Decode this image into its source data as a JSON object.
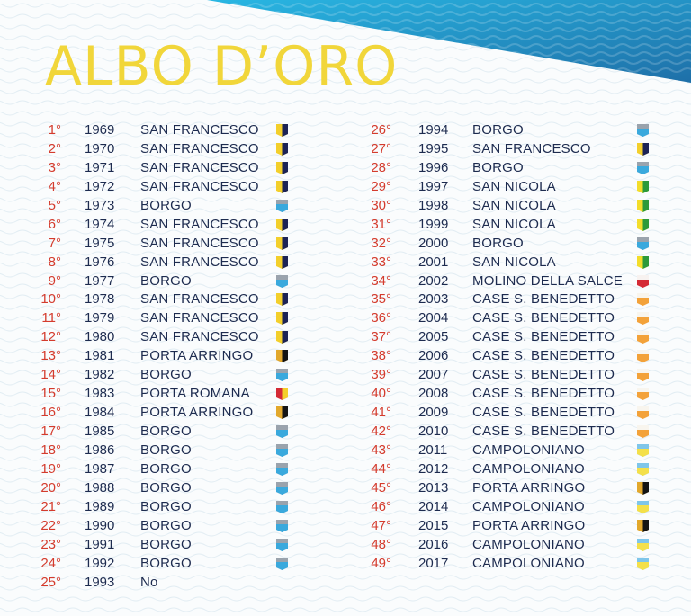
{
  "title": "ALBO D’ORO",
  "colors": {
    "title": "#f1d63a",
    "rank": "#d43b2d",
    "text": "#1d2b4f",
    "corner_top": "#29b7e3",
    "corner_bottom": "#1e6fa8"
  },
  "left_column": [
    {
      "rank": "1°",
      "year": "1969",
      "team": "SAN FRANCESCO",
      "flag": "san-francesco"
    },
    {
      "rank": "2°",
      "year": "1970",
      "team": "SAN FRANCESCO",
      "flag": "san-francesco"
    },
    {
      "rank": "3°",
      "year": "1971",
      "team": "SAN FRANCESCO",
      "flag": "san-francesco"
    },
    {
      "rank": "4°",
      "year": "1972",
      "team": "SAN FRANCESCO",
      "flag": "san-francesco"
    },
    {
      "rank": "5°",
      "year": "1973",
      "team": "BORGO",
      "flag": "borgo"
    },
    {
      "rank": "6°",
      "year": "1974",
      "team": "SAN FRANCESCO",
      "flag": "san-francesco"
    },
    {
      "rank": "7°",
      "year": "1975",
      "team": "SAN FRANCESCO",
      "flag": "san-francesco"
    },
    {
      "rank": "8°",
      "year": "1976",
      "team": "SAN FRANCESCO",
      "flag": "san-francesco"
    },
    {
      "rank": "9°",
      "year": "1977",
      "team": "BORGO",
      "flag": "borgo"
    },
    {
      "rank": "10°",
      "year": "1978",
      "team": "SAN FRANCESCO",
      "flag": "san-francesco"
    },
    {
      "rank": "11°",
      "year": "1979",
      "team": "SAN FRANCESCO",
      "flag": "san-francesco"
    },
    {
      "rank": "12°",
      "year": "1980",
      "team": "SAN FRANCESCO",
      "flag": "san-francesco"
    },
    {
      "rank": "13°",
      "year": "1981",
      "team": "PORTA ARRINGO",
      "flag": "porta-arringo"
    },
    {
      "rank": "14°",
      "year": "1982",
      "team": "BORGO",
      "flag": "borgo"
    },
    {
      "rank": "15°",
      "year": "1983",
      "team": "PORTA ROMANA",
      "flag": "porta-romana"
    },
    {
      "rank": "16°",
      "year": "1984",
      "team": "PORTA ARRINGO",
      "flag": "porta-arringo"
    },
    {
      "rank": "17°",
      "year": "1985",
      "team": "BORGO",
      "flag": "borgo"
    },
    {
      "rank": "18°",
      "year": "1986",
      "team": "BORGO",
      "flag": "borgo"
    },
    {
      "rank": "19°",
      "year": "1987",
      "team": "BORGO",
      "flag": "borgo"
    },
    {
      "rank": "20°",
      "year": "1988",
      "team": "BORGO",
      "flag": "borgo"
    },
    {
      "rank": "21°",
      "year": "1989",
      "team": "BORGO",
      "flag": "borgo"
    },
    {
      "rank": "22°",
      "year": "1990",
      "team": "BORGO",
      "flag": "borgo"
    },
    {
      "rank": "23°",
      "year": "1991",
      "team": "BORGO",
      "flag": "borgo"
    },
    {
      "rank": "24°",
      "year": "1992",
      "team": "BORGO",
      "flag": "borgo"
    },
    {
      "rank": "25°",
      "year": "1993",
      "team": "No",
      "flag": ""
    }
  ],
  "right_column": [
    {
      "rank": "26°",
      "year": "1994",
      "team": "BORGO",
      "flag": "borgo"
    },
    {
      "rank": "27°",
      "year": "1995",
      "team": "SAN FRANCESCO",
      "flag": "san-francesco"
    },
    {
      "rank": "28°",
      "year": "1996",
      "team": "BORGO",
      "flag": "borgo"
    },
    {
      "rank": "29°",
      "year": "1997",
      "team": "SAN NICOLA",
      "flag": "san-nicola"
    },
    {
      "rank": "30°",
      "year": "1998",
      "team": "SAN NICOLA",
      "flag": "san-nicola"
    },
    {
      "rank": "31°",
      "year": "1999",
      "team": "SAN NICOLA",
      "flag": "san-nicola"
    },
    {
      "rank": "32°",
      "year": "2000",
      "team": "BORGO",
      "flag": "borgo"
    },
    {
      "rank": "33°",
      "year": "2001",
      "team": "SAN NICOLA",
      "flag": "san-nicola"
    },
    {
      "rank": "34°",
      "year": "2002",
      "team": "MOLINO DELLA SALCE",
      "flag": "molino-della-salce"
    },
    {
      "rank": "35°",
      "year": "2003",
      "team": "CASE S. BENEDETTO",
      "flag": "case-s-benedetto"
    },
    {
      "rank": "36°",
      "year": "2004",
      "team": "CASE S. BENEDETTO",
      "flag": "case-s-benedetto"
    },
    {
      "rank": "37°",
      "year": "2005",
      "team": "CASE S. BENEDETTO",
      "flag": "case-s-benedetto"
    },
    {
      "rank": "38°",
      "year": "2006",
      "team": "CASE S. BENEDETTO",
      "flag": "case-s-benedetto"
    },
    {
      "rank": "39°",
      "year": "2007",
      "team": "CASE S. BENEDETTO",
      "flag": "case-s-benedetto"
    },
    {
      "rank": "40°",
      "year": "2008",
      "team": "CASE S. BENEDETTO",
      "flag": "case-s-benedetto"
    },
    {
      "rank": "41°",
      "year": "2009",
      "team": "CASE S. BENEDETTO",
      "flag": "case-s-benedetto"
    },
    {
      "rank": "42°",
      "year": "2010",
      "team": "CASE S. BENEDETTO",
      "flag": "case-s-benedetto"
    },
    {
      "rank": "43°",
      "year": "2011",
      "team": "CAMPOLONIANO",
      "flag": "campoloniano"
    },
    {
      "rank": "44°",
      "year": "2012",
      "team": "CAMPOLONIANO",
      "flag": "campoloniano"
    },
    {
      "rank": "45°",
      "year": "2013",
      "team": "PORTA ARRINGO",
      "flag": "porta-arringo"
    },
    {
      "rank": "46°",
      "year": "2014",
      "team": "CAMPOLONIANO",
      "flag": "campoloniano"
    },
    {
      "rank": "47°",
      "year": "2015",
      "team": "PORTA ARRINGO",
      "flag": "porta-arringo"
    },
    {
      "rank": "48°",
      "year": "2016",
      "team": "CAMPOLONIANO",
      "flag": "campoloniano"
    },
    {
      "rank": "49°",
      "year": "2017",
      "team": "CAMPOLONIANO",
      "flag": "campoloniano"
    }
  ],
  "flags": {
    "san-francesco": [
      "#f3cf2b",
      "#1c2355"
    ],
    "borgo": [
      "#9aa3ad",
      "#3aa9dd"
    ],
    "san-nicola": [
      "#f3dd2b",
      "#2d9a3a"
    ],
    "molino-della-salce": [
      "#f7f2f0",
      "#d42a35"
    ],
    "case-s-benedetto": [
      "#f8f5ee",
      "#f3a23a"
    ],
    "campoloniano": [
      "#7fc6ea",
      "#f4e04a"
    ],
    "porta-arringo": [
      "#e2a82c",
      "#141414"
    ],
    "porta-romana": [
      "#d42a35",
      "#f3cf2b"
    ]
  }
}
